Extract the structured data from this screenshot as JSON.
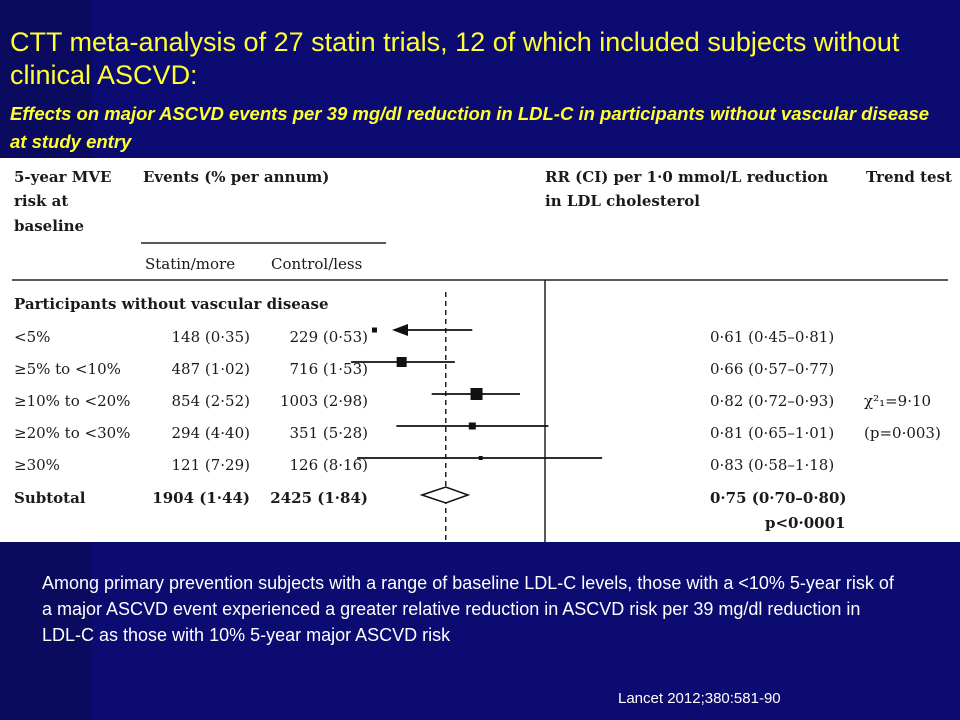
{
  "slide": {
    "title": "CTT meta-analysis of 27 statin trials, 12 of which included subjects without clinical ASCVD:",
    "subtitle": "Effects on major ASCVD events per 39 mg/dl reduction in LDL-C in participants without vascular disease at study entry",
    "summary": "Among primary prevention subjects with a range of baseline LDL-C levels, those with a <10% 5-year risk of a major ASCVD event experienced a greater relative reduction in ASCVD risk per 39 mg/dl reduction in LDL-C as those with 10%  5-year major ASCVD risk",
    "citation": "Lancet 2012;380:581-90",
    "colors": {
      "background": "#0b0b72",
      "title": "#ffff33",
      "text": "#ffffff"
    }
  },
  "chart_data": {
    "type": "forest",
    "headers": {
      "risk": [
        "5-year MVE",
        "risk at",
        "baseline"
      ],
      "events": "Events (% per annum)",
      "statin": "Statin/more",
      "control": "Control/less",
      "rr": [
        "RR (CI) per 1·0 mmol/L reduction",
        "in LDL cholesterol"
      ],
      "trend": "Trend test"
    },
    "group_label": "Participants without vascular disease",
    "rows": [
      {
        "label": "<5%",
        "statin": "148 (0·35)",
        "control": "229 (0·53)",
        "rr_text": "0·61 (0·45–0·81)",
        "rr": 0.61,
        "lo": 0.45,
        "hi": 0.81,
        "arrow_left": true
      },
      {
        "label": "≥5% to <10%",
        "statin": "487 (1·02)",
        "control": "716 (1·53)",
        "rr_text": "0·66 (0·57–0·77)",
        "rr": 0.66,
        "lo": 0.57,
        "hi": 0.77
      },
      {
        "label": "≥10% to <20%",
        "statin": "854 (2·52)",
        "control": "1003 (2·98)",
        "rr_text": "0·82 (0·72–0·93)",
        "rr": 0.82,
        "lo": 0.72,
        "hi": 0.93
      },
      {
        "label": "≥20% to <30%",
        "statin": "294 (4·40)",
        "control": "351 (5·28)",
        "rr_text": "0·81 (0·65–1·01)",
        "rr": 0.81,
        "lo": 0.65,
        "hi": 1.01
      },
      {
        "label": "≥30%",
        "statin": "121 (7·29)",
        "control": "126 (8·16)",
        "rr_text": "0·83 (0·58–1·18)",
        "rr": 0.83,
        "lo": 0.58,
        "hi": 1.18
      }
    ],
    "subtotal": {
      "label": "Subtotal",
      "statin": "1904 (1·44)",
      "control": "2425 (1·84)",
      "rr_text": "0·75 (0·70–0·80)",
      "rr": 0.75,
      "lo": 0.7,
      "hi": 0.8,
      "p": "p<0·0001"
    },
    "trend_test": {
      "stat": "χ²₁=9·10",
      "p": "(p=0·003)"
    },
    "reference_line": 1.0,
    "pooled_line": 0.75
  }
}
